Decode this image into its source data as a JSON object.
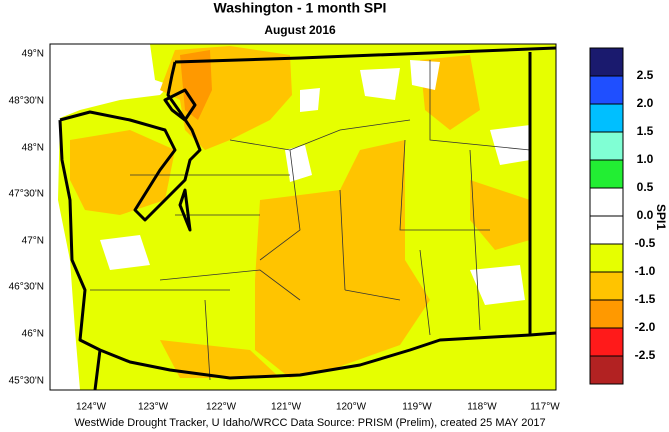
{
  "header": {
    "title": "Washington - 1 month SPI",
    "subtitle": "August 2016"
  },
  "latitude_labels": [
    "49°N",
    "48°30'N",
    "48°N",
    "47°30'N",
    "47°N",
    "46°30'N",
    "46°N",
    "45°30'N"
  ],
  "longitude_labels": [
    "124°W",
    "123°W",
    "122°W",
    "121°W",
    "120°W",
    "119°W",
    "118°W",
    "117°W"
  ],
  "legend": {
    "title": "SPI1",
    "labels": [
      "2.5",
      "2.0",
      "1.5",
      "1.0",
      "0.5",
      "0.0",
      "-0.5",
      "-1.0",
      "-1.5",
      "-2.0",
      "-2.5"
    ],
    "colors": [
      "#1a1a6e",
      "#1f4fff",
      "#00bfff",
      "#80ffd4",
      "#22ee33",
      "#ffffff",
      "#ffffff",
      "#e6ff00",
      "#ffc400",
      "#ff9900",
      "#ff1a1a",
      "#b22222"
    ]
  },
  "footer": "WestWide Drought Tracker, U Idaho/WRCC Data Source: PRISM (Prelim), created 25 MAY 2017"
}
